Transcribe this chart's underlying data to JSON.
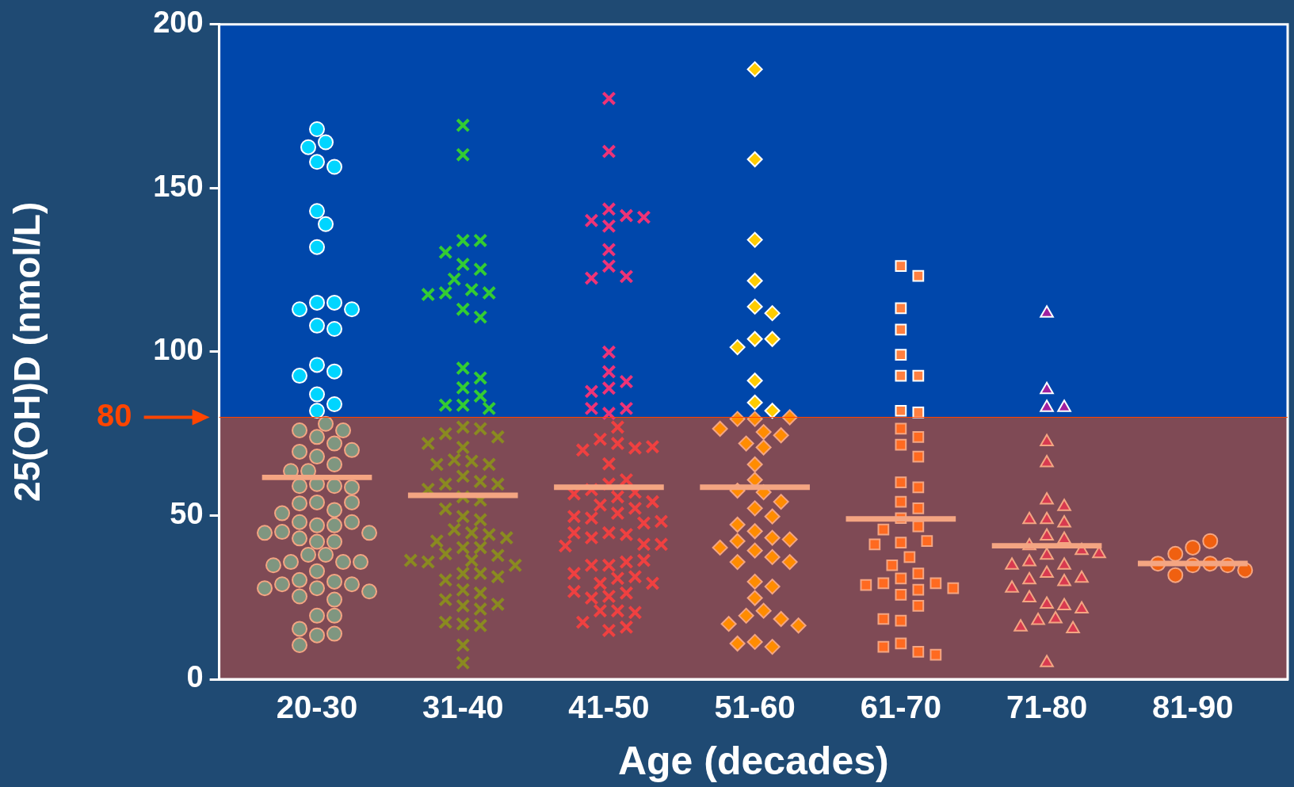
{
  "chart_data": {
    "type": "scatter",
    "xlabel": "Age (decades)",
    "ylabel": "25(OH)D (nmol/L)",
    "categories": [
      "20-30",
      "31-40",
      "41-50",
      "51-60",
      "61-70",
      "71-80",
      "81-90"
    ],
    "ylim": [
      0,
      200
    ],
    "yticks": [
      0,
      50,
      100,
      150,
      200
    ],
    "legend": false,
    "bands": [
      {
        "axis": "y",
        "from": 0,
        "to": 80,
        "color": "#7f4a55"
      },
      {
        "axis": "y",
        "from": 80,
        "to": 200,
        "color": "#0047ab"
      }
    ],
    "ref_lines": [
      {
        "axis": "y",
        "value": 80,
        "label": "80",
        "color": "#ff4500"
      }
    ],
    "series": [
      {
        "marker": "circle",
        "color": "#00d5ff",
        "x": [
          "20-30",
          "20-30",
          "20-30",
          "20-30",
          "20-30",
          "20-30",
          "20-30",
          "20-30",
          "20-30",
          "20-30",
          "20-30",
          "20-30",
          "20-30",
          "20-30",
          "20-30",
          "20-30",
          "20-30",
          "20-30",
          "20-30",
          "20-30"
        ],
        "values": [
          168,
          164,
          162.5,
          158,
          156.5,
          143,
          139,
          132,
          115,
          115,
          113,
          113,
          108,
          107,
          96,
          94,
          92.7,
          87,
          84,
          82
        ]
      },
      {
        "marker": "circle",
        "color": "#7f9680",
        "x": [
          "20-30",
          "20-30",
          "20-30",
          "20-30",
          "20-30",
          "20-30",
          "20-30",
          "20-30",
          "20-30",
          "20-30",
          "20-30",
          "20-30",
          "20-30",
          "20-30",
          "20-30",
          "20-30",
          "20-30",
          "20-30",
          "20-30",
          "20-30",
          "20-30",
          "20-30",
          "20-30",
          "20-30",
          "20-30",
          "20-30",
          "20-30",
          "20-30",
          "20-30",
          "20-30",
          "20-30",
          "20-30",
          "20-30",
          "20-30",
          "20-30",
          "20-30",
          "20-30",
          "20-30",
          "20-30",
          "20-30",
          "20-30",
          "20-30",
          "20-30",
          "20-30",
          "20-30",
          "20-30",
          "20-30",
          "20-30",
          "20-30",
          "20-30",
          "20-30",
          "20-30"
        ],
        "values": [
          78,
          74,
          76,
          76,
          72,
          68,
          69.5,
          70,
          65.6,
          63.6,
          63.6,
          59.6,
          59,
          59,
          58.6,
          54,
          51.7,
          53.7,
          54,
          50.7,
          47,
          48,
          47,
          48,
          45,
          44.7,
          44.7,
          42,
          43,
          42,
          38,
          38,
          35.8,
          35.8,
          35.8,
          33,
          34.8,
          29.8,
          30.3,
          29,
          29,
          27.8,
          26.8,
          27.8,
          24.3,
          25.3,
          19.4,
          19.4,
          13.4,
          15.4,
          13.9,
          10.4
        ]
      },
      {
        "marker": "cross",
        "color": "#33cc33",
        "x": [
          "31-40",
          "31-40",
          "31-40",
          "31-40",
          "31-40",
          "31-40",
          "31-40",
          "31-40",
          "31-40",
          "31-40",
          "31-40",
          "31-40",
          "31-40",
          "31-40",
          "31-40",
          "31-40",
          "31-40",
          "31-40",
          "31-40",
          "31-40",
          "31-40"
        ],
        "values": [
          169.2,
          160.2,
          134,
          134,
          130.4,
          126.7,
          125.2,
          122.2,
          119,
          118,
          118,
          117.5,
          113,
          110.6,
          95,
          92,
          89,
          86.5,
          83.7,
          83.7,
          82.7
        ]
      },
      {
        "marker": "cross",
        "color": "#8a8a20",
        "x": [
          "31-40",
          "31-40",
          "31-40",
          "31-40",
          "31-40",
          "31-40",
          "31-40",
          "31-40",
          "31-40",
          "31-40",
          "31-40",
          "31-40",
          "31-40",
          "31-40",
          "31-40",
          "31-40",
          "31-40",
          "31-40",
          "31-40",
          "31-40",
          "31-40",
          "31-40",
          "31-40",
          "31-40",
          "31-40",
          "31-40",
          "31-40",
          "31-40",
          "31-40",
          "31-40",
          "31-40",
          "31-40",
          "31-40",
          "31-40",
          "31-40",
          "31-40",
          "31-40",
          "31-40",
          "31-40",
          "31-40",
          "31-40",
          "31-40",
          "31-40",
          "31-40",
          "31-40",
          "31-40",
          "31-40",
          "31-40"
        ],
        "values": [
          77,
          76.5,
          75,
          74,
          70.8,
          72,
          66.6,
          67,
          65.6,
          65.6,
          62,
          60.4,
          59.6,
          59.6,
          58,
          55.7,
          54.7,
          52,
          49.7,
          48.7,
          45.7,
          44.7,
          44.2,
          42.2,
          43.2,
          40.2,
          40.2,
          38.3,
          37.8,
          36.3,
          35.8,
          34.8,
          36.3,
          32.3,
          32.3,
          30.3,
          31.3,
          27.3,
          26.3,
          24.3,
          22.4,
          21.4,
          22.9,
          16.9,
          17.4,
          16.4,
          10.4,
          5
        ]
      },
      {
        "marker": "cross",
        "color": "#ee3377",
        "x": [
          "41-50",
          "41-50",
          "41-50",
          "41-50",
          "41-50",
          "41-50",
          "41-50",
          "41-50",
          "41-50",
          "41-50",
          "41-50",
          "41-50",
          "41-50",
          "41-50",
          "41-50",
          "41-50",
          "41-50",
          "41-50",
          "41-50"
        ],
        "values": [
          177.4,
          161.2,
          143.6,
          141.6,
          140.1,
          141.1,
          138.4,
          131.2,
          126.2,
          123,
          122.5,
          99.9,
          93.9,
          90.9,
          88.9,
          87.9,
          81.2,
          82.7,
          82.7
        ]
      },
      {
        "marker": "cross",
        "color": "#f04040",
        "x": [
          "41-50",
          "41-50",
          "41-50",
          "41-50",
          "41-50",
          "41-50",
          "41-50",
          "41-50",
          "41-50",
          "41-50",
          "41-50",
          "41-50",
          "41-50",
          "41-50",
          "41-50",
          "41-50",
          "41-50",
          "41-50",
          "41-50",
          "41-50",
          "41-50",
          "41-50",
          "41-50",
          "41-50",
          "41-50",
          "41-50",
          "41-50",
          "41-50",
          "41-50",
          "41-50",
          "41-50",
          "41-50",
          "41-50",
          "41-50",
          "41-50",
          "41-50",
          "41-50",
          "41-50",
          "41-50",
          "41-50",
          "41-50",
          "41-50",
          "41-50",
          "41-50",
          "41-50",
          "41-50",
          "41-50"
        ],
        "values": [
          77,
          73.3,
          72,
          70.6,
          70,
          71,
          65.8,
          59.6,
          60.9,
          57.9,
          57.1,
          56.6,
          55.7,
          54.2,
          53.2,
          52.2,
          50.7,
          49.2,
          49.7,
          47.7,
          48.2,
          44.7,
          44.2,
          43.2,
          44.7,
          41.2,
          40.7,
          41.2,
          34.8,
          35.8,
          34.8,
          36.3,
          30.8,
          31.3,
          32.3,
          29.3,
          29.3,
          25.3,
          26.3,
          24.8,
          26.8,
          20.9,
          20.9,
          20.4,
          14.9,
          15.9,
          17.4
        ]
      },
      {
        "marker": "diamond",
        "color": "#ffcc00",
        "x": [
          "51-60",
          "51-60",
          "51-60",
          "51-60",
          "51-60",
          "51-60",
          "51-60",
          "51-60",
          "51-60",
          "51-60",
          "51-60",
          "51-60"
        ],
        "values": [
          186.3,
          158.8,
          134.2,
          121.7,
          113.8,
          111.8,
          103.9,
          103.9,
          101.4,
          91.2,
          84.5,
          82
        ]
      },
      {
        "marker": "diamond",
        "color": "#ff8c00",
        "x": [
          "51-60",
          "51-60",
          "51-60",
          "51-60",
          "51-60",
          "51-60",
          "51-60",
          "51-60",
          "51-60",
          "51-60",
          "51-60",
          "51-60",
          "51-60",
          "51-60",
          "51-60",
          "51-60",
          "51-60",
          "51-60",
          "51-60",
          "51-60",
          "51-60",
          "51-60",
          "51-60",
          "51-60",
          "51-60",
          "51-60",
          "51-60",
          "51-60",
          "51-60",
          "51-60",
          "51-60",
          "51-60",
          "51-60",
          "51-60",
          "51-60",
          "51-60"
        ],
        "values": [
          79.5,
          79.5,
          80,
          75.5,
          76.5,
          72,
          74.5,
          70.8,
          65.6,
          60.9,
          57.1,
          57.6,
          54.2,
          52.2,
          49.7,
          45.2,
          47.2,
          43.2,
          42.2,
          42.7,
          39.3,
          40.2,
          37.3,
          35.8,
          35.8,
          29.8,
          28.3,
          24.8,
          20.9,
          19.4,
          18.4,
          16.9,
          16.4,
          11.4,
          9.9,
          10.9
        ]
      },
      {
        "marker": "square",
        "color": "#ff7f3f",
        "x": [
          "61-70",
          "61-70",
          "61-70",
          "61-70",
          "61-70",
          "61-70",
          "61-70",
          "61-70",
          "61-70"
        ],
        "values": [
          126.2,
          123.2,
          113.3,
          106.8,
          99.1,
          92.7,
          92.7,
          82,
          81.5
        ]
      },
      {
        "marker": "square",
        "color": "#ff6a20",
        "x": [
          "61-70",
          "61-70",
          "61-70",
          "61-70",
          "61-70",
          "61-70",
          "61-70",
          "61-70",
          "61-70",
          "61-70",
          "61-70",
          "61-70",
          "61-70",
          "61-70",
          "61-70",
          "61-70",
          "61-70",
          "61-70",
          "61-70",
          "61-70",
          "61-70",
          "61-70",
          "61-70",
          "61-70",
          "61-70",
          "61-70",
          "61-70",
          "61-70",
          "61-70",
          "61-70",
          "61-70"
        ],
        "values": [
          76.5,
          74,
          71.6,
          68,
          60.1,
          58.6,
          54.2,
          52.2,
          49.2,
          46.7,
          45.7,
          41.7,
          42.2,
          41.2,
          37.3,
          34.8,
          30.8,
          32.3,
          29.3,
          29.3,
          28.8,
          27.8,
          25.8,
          27.3,
          22.4,
          17.9,
          18.4,
          10.9,
          8.4,
          9.9,
          7.5
        ]
      },
      {
        "marker": "triangle",
        "color": "#a020a0",
        "x": [
          "71-80",
          "71-80",
          "71-80",
          "71-80"
        ],
        "values": [
          111.8,
          88.4,
          83,
          83
        ]
      },
      {
        "marker": "triangle",
        "color": "#d83a50",
        "x": [
          "71-80",
          "71-80",
          "71-80",
          "71-80",
          "71-80",
          "71-80",
          "71-80",
          "71-80",
          "71-80",
          "71-80",
          "71-80",
          "71-80",
          "71-80",
          "71-80",
          "71-80",
          "71-80",
          "71-80",
          "71-80",
          "71-80",
          "71-80",
          "71-80",
          "71-80",
          "71-80",
          "71-80",
          "71-80",
          "71-80",
          "71-80",
          "71-80",
          "71-80",
          "71-80"
        ],
        "values": [
          72.5,
          66.1,
          54.7,
          52.7,
          48.7,
          47.7,
          48.7,
          43.7,
          42.7,
          40.7,
          39.3,
          37.8,
          34.8,
          35.8,
          34.8,
          38.3,
          32.3,
          30.3,
          29.8,
          30.8,
          27.8,
          22.9,
          22.4,
          24.8,
          21.4,
          18.4,
          17.9,
          15.4,
          15.9,
          5
        ]
      },
      {
        "marker": "circle",
        "color": "#f06010",
        "x": [
          "81-90",
          "81-90",
          "81-90",
          "81-90",
          "81-90",
          "81-90",
          "81-90",
          "81-90",
          "81-90"
        ],
        "values": [
          34.8,
          35.3,
          38.3,
          40.2,
          42.2,
          34.8,
          35.3,
          31.8,
          33.3
        ]
      },
      {
        "type": "bar",
        "color": "#f4a582",
        "x": [
          "20-30",
          "31-40",
          "41-50",
          "51-60",
          "61-70",
          "71-80",
          "81-90"
        ],
        "base": [
          60.9,
          55.4,
          57.9,
          57.9,
          48.2,
          40,
          34.6
        ],
        "values": [
          1.5,
          1.5,
          1.5,
          1.5,
          1.5,
          1.5,
          1.5
        ]
      }
    ]
  }
}
